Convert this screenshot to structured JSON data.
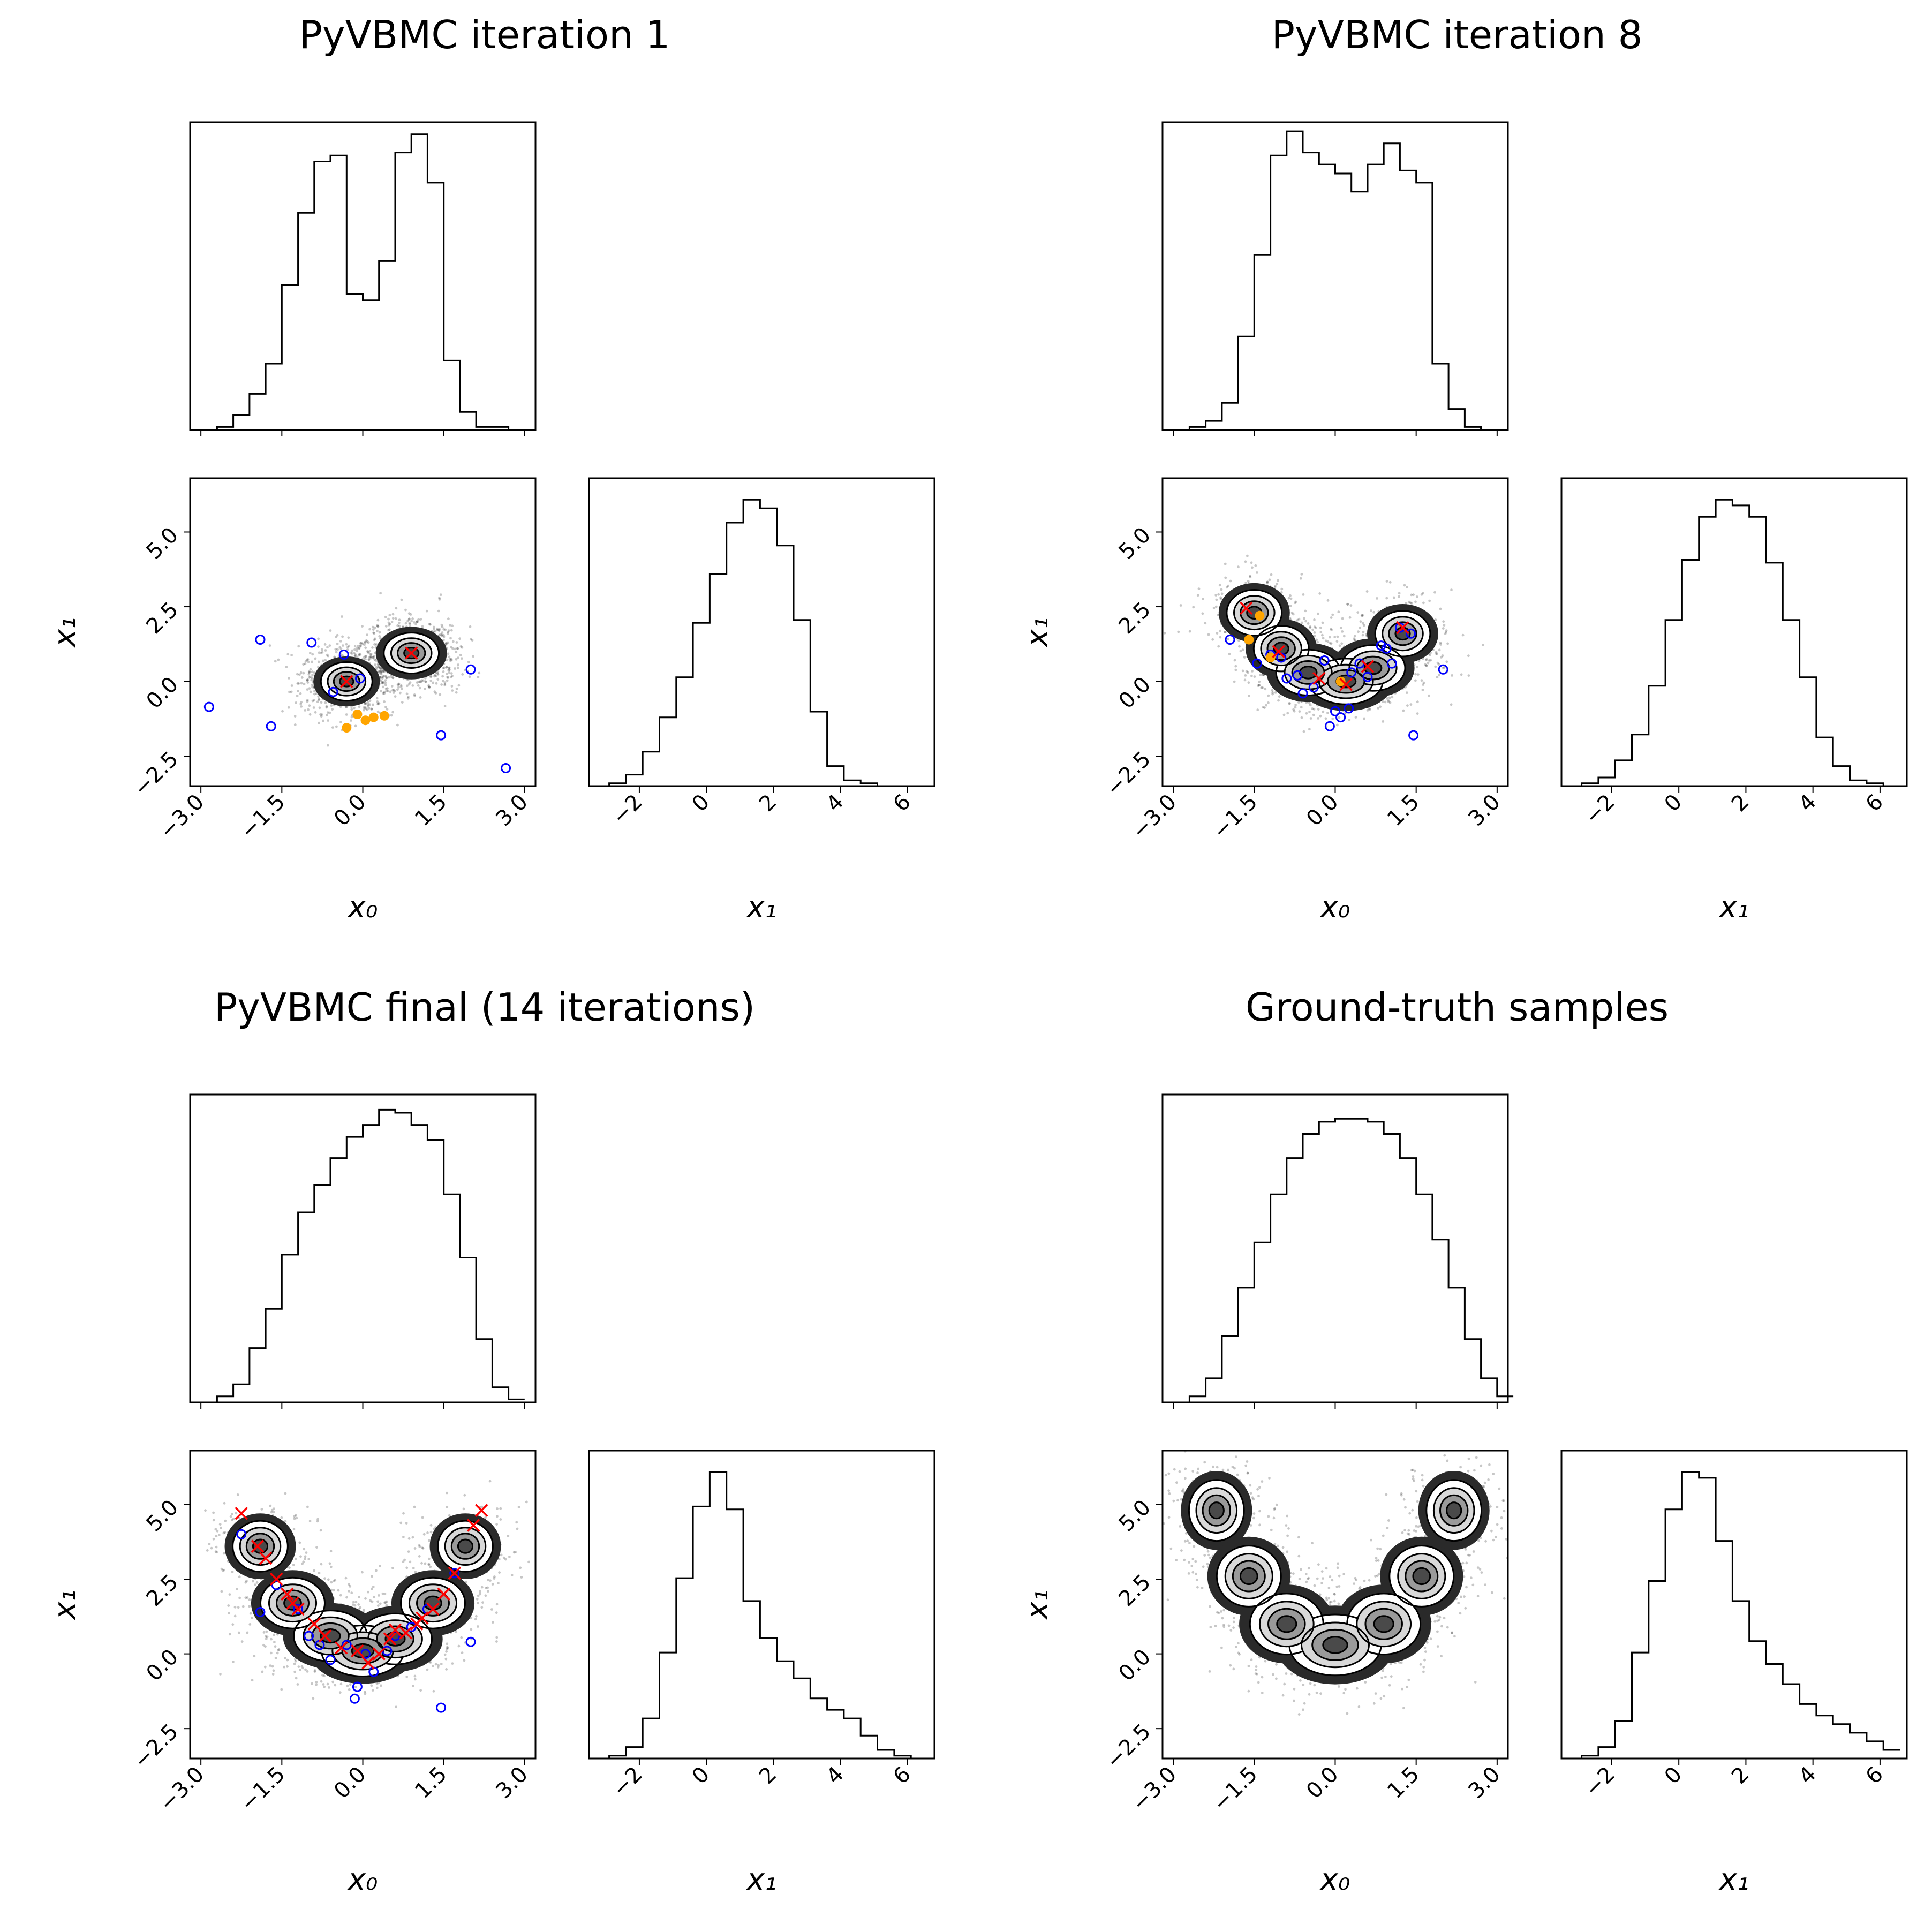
{
  "panels": [
    {
      "id": "iter1",
      "title": "PyVBMC iteration 1",
      "x_tick_labels": [
        "−3.0",
        "−1.5",
        "0.0",
        "1.5",
        "3.0"
      ],
      "y_tick_labels": [
        "−2.5",
        "0.0",
        "2.5",
        "5.0"
      ],
      "x1_marginal_tick_labels": [
        "−2",
        "0",
        "2",
        "4",
        "6"
      ],
      "x0_label": "x₀",
      "x1_label": "x₁"
    },
    {
      "id": "iter8",
      "title": "PyVBMC iteration 8",
      "x_tick_labels": [
        "−3.0",
        "−1.5",
        "0.0",
        "1.5",
        "3.0"
      ],
      "y_tick_labels": [
        "−2.5",
        "0.0",
        "2.5",
        "5.0"
      ],
      "x1_marginal_tick_labels": [
        "−2",
        "0",
        "2",
        "4",
        "6"
      ],
      "x0_label": "x₀",
      "x1_label": "x₁"
    },
    {
      "id": "final",
      "title": "PyVBMC final (14 iterations)",
      "x_tick_labels": [
        "−3.0",
        "−1.5",
        "0.0",
        "1.5",
        "3.0"
      ],
      "y_tick_labels": [
        "−2.5",
        "0.0",
        "2.5",
        "5.0"
      ],
      "x1_marginal_tick_labels": [
        "−2",
        "0",
        "2",
        "4",
        "6"
      ],
      "x0_label": "x₀",
      "x1_label": "x₁"
    },
    {
      "id": "truth",
      "title": "Ground-truth samples",
      "x_tick_labels": [
        "−3.0",
        "−1.5",
        "0.0",
        "1.5",
        "3.0"
      ],
      "y_tick_labels": [
        "−2.5",
        "0.0",
        "2.5",
        "5.0"
      ],
      "x1_marginal_tick_labels": [
        "−2",
        "0",
        "2",
        "4",
        "6"
      ],
      "x0_label": "x₀",
      "x1_label": "x₁"
    }
  ],
  "chart_data": [
    {
      "type": "corner",
      "title": "PyVBMC iteration 1",
      "x0_range": [
        -3.2,
        3.2
      ],
      "x1_range": [
        -3.5,
        6.8
      ],
      "x0_hist": {
        "edges_start": -3.0,
        "bin_width": 0.3,
        "counts": [
          0,
          0.01,
          0.05,
          0.12,
          0.22,
          0.48,
          0.72,
          0.89,
          0.91,
          0.45,
          0.43,
          0.56,
          0.92,
          0.98,
          0.82,
          0.23,
          0.06,
          0.01,
          0.01,
          0
        ]
      },
      "x1_hist": {
        "edges_start": -3.4,
        "bin_width": 0.5,
        "counts": [
          0,
          0.01,
          0.04,
          0.12,
          0.24,
          0.38,
          0.57,
          0.74,
          0.92,
          1.0,
          0.97,
          0.84,
          0.58,
          0.26,
          0.07,
          0.02,
          0.01,
          0,
          0,
          0
        ]
      },
      "components": [
        {
          "mean": [
            -0.3,
            0.0
          ],
          "sd": [
            0.28,
            0.38
          ]
        },
        {
          "mean": [
            0.9,
            0.95
          ],
          "sd": [
            0.3,
            0.4
          ]
        }
      ],
      "component_markers": [
        [
          -0.3,
          0.0
        ],
        [
          0.9,
          0.95
        ]
      ],
      "training_points": [
        [
          -2.85,
          -0.85
        ],
        [
          -1.9,
          1.4
        ],
        [
          -1.7,
          -1.5
        ],
        [
          -0.95,
          1.3
        ],
        [
          -0.55,
          -0.35
        ],
        [
          -0.35,
          0.9
        ],
        [
          -0.05,
          0.1
        ],
        [
          2.0,
          0.4
        ],
        [
          1.45,
          -1.8
        ],
        [
          2.65,
          -2.9
        ]
      ],
      "new_points": [
        [
          -0.1,
          -1.1
        ],
        [
          0.05,
          -1.3
        ],
        [
          0.2,
          -1.2
        ],
        [
          0.4,
          -1.15
        ],
        [
          -0.3,
          -1.55
        ]
      ]
    },
    {
      "type": "corner",
      "title": "PyVBMC iteration 8",
      "x0_range": [
        -3.2,
        3.2
      ],
      "x1_range": [
        -3.5,
        6.8
      ],
      "x0_hist": {
        "edges_start": -3.0,
        "bin_width": 0.3,
        "counts": [
          0,
          0.01,
          0.03,
          0.09,
          0.31,
          0.58,
          0.91,
          0.99,
          0.92,
          0.88,
          0.85,
          0.79,
          0.88,
          0.95,
          0.86,
          0.82,
          0.22,
          0.07,
          0.01,
          0
        ]
      },
      "x1_hist": {
        "edges_start": -3.4,
        "bin_width": 0.5,
        "counts": [
          0,
          0.01,
          0.03,
          0.09,
          0.18,
          0.35,
          0.58,
          0.79,
          0.94,
          1.0,
          0.98,
          0.94,
          0.78,
          0.58,
          0.38,
          0.17,
          0.07,
          0.02,
          0.01,
          0
        ]
      },
      "components": [
        {
          "mean": [
            -1.5,
            2.3
          ],
          "sd": [
            0.3,
            0.45
          ]
        },
        {
          "mean": [
            -1.0,
            1.1
          ],
          "sd": [
            0.3,
            0.45
          ]
        },
        {
          "mean": [
            -0.5,
            0.3
          ],
          "sd": [
            0.35,
            0.45
          ]
        },
        {
          "mean": [
            0.2,
            0.0
          ],
          "sd": [
            0.4,
            0.45
          ]
        },
        {
          "mean": [
            0.7,
            0.45
          ],
          "sd": [
            0.35,
            0.45
          ]
        },
        {
          "mean": [
            1.25,
            1.6
          ],
          "sd": [
            0.3,
            0.45
          ]
        }
      ],
      "component_markers": [
        [
          -1.65,
          2.45
        ],
        [
          -1.05,
          1.0
        ],
        [
          -0.3,
          0.1
        ],
        [
          0.2,
          -0.1
        ],
        [
          0.6,
          0.5
        ],
        [
          1.25,
          1.8
        ]
      ],
      "training_points": [
        [
          -1.95,
          1.4
        ],
        [
          -1.45,
          0.6
        ],
        [
          -1.2,
          0.9
        ],
        [
          -1.0,
          0.8
        ],
        [
          -0.9,
          0.1
        ],
        [
          -0.7,
          0.2
        ],
        [
          -0.6,
          -0.4
        ],
        [
          -0.4,
          -0.2
        ],
        [
          -0.2,
          0.7
        ],
        [
          0.0,
          -1.0
        ],
        [
          0.1,
          -1.2
        ],
        [
          0.25,
          -0.9
        ],
        [
          0.45,
          0.6
        ],
        [
          0.6,
          0.15
        ],
        [
          0.85,
          1.2
        ],
        [
          0.95,
          1.1
        ],
        [
          1.05,
          0.6
        ],
        [
          1.2,
          1.8
        ],
        [
          1.4,
          1.6
        ],
        [
          1.45,
          -1.8
        ],
        [
          2.0,
          0.4
        ],
        [
          -0.1,
          -1.5
        ],
        [
          0.3,
          0.3
        ]
      ],
      "new_points": [
        [
          -1.4,
          2.2
        ],
        [
          -1.6,
          1.4
        ],
        [
          -1.2,
          0.8
        ],
        [
          0.1,
          0.0
        ]
      ]
    },
    {
      "type": "corner",
      "title": "PyVBMC final (14 iterations)",
      "x0_range": [
        -3.2,
        3.2
      ],
      "x1_range": [
        -3.5,
        6.8
      ],
      "x0_hist": {
        "edges_start": -3.0,
        "bin_width": 0.3,
        "counts": [
          0,
          0.02,
          0.06,
          0.18,
          0.31,
          0.49,
          0.63,
          0.72,
          0.81,
          0.88,
          0.92,
          0.97,
          0.96,
          0.92,
          0.87,
          0.69,
          0.48,
          0.21,
          0.05,
          0.01
        ]
      },
      "x1_hist": {
        "edges_start": -3.4,
        "bin_width": 0.5,
        "counts": [
          0,
          0.01,
          0.04,
          0.14,
          0.37,
          0.63,
          0.88,
          1.0,
          0.87,
          0.55,
          0.42,
          0.34,
          0.28,
          0.21,
          0.17,
          0.14,
          0.08,
          0.03,
          0.01,
          0
        ]
      },
      "components": [
        {
          "mean": [
            -1.9,
            3.6
          ],
          "sd": [
            0.3,
            0.5
          ]
        },
        {
          "mean": [
            -1.3,
            1.7
          ],
          "sd": [
            0.35,
            0.5
          ]
        },
        {
          "mean": [
            -0.6,
            0.6
          ],
          "sd": [
            0.4,
            0.5
          ]
        },
        {
          "mean": [
            0.0,
            0.1
          ],
          "sd": [
            0.45,
            0.5
          ]
        },
        {
          "mean": [
            0.6,
            0.5
          ],
          "sd": [
            0.4,
            0.5
          ]
        },
        {
          "mean": [
            1.3,
            1.7
          ],
          "sd": [
            0.35,
            0.5
          ]
        },
        {
          "mean": [
            1.9,
            3.6
          ],
          "sd": [
            0.3,
            0.5
          ]
        }
      ],
      "component_markers": [
        [
          -2.25,
          4.7
        ],
        [
          -1.95,
          3.6
        ],
        [
          -1.8,
          3.2
        ],
        [
          -1.6,
          2.5
        ],
        [
          -1.4,
          2.0
        ],
        [
          -1.3,
          1.7
        ],
        [
          -1.2,
          1.5
        ],
        [
          -0.9,
          1.0
        ],
        [
          -0.7,
          0.6
        ],
        [
          -0.4,
          0.2
        ],
        [
          -0.1,
          0.1
        ],
        [
          0.1,
          -0.3
        ],
        [
          0.3,
          0.0
        ],
        [
          0.5,
          0.5
        ],
        [
          0.6,
          0.8
        ],
        [
          0.8,
          0.7
        ],
        [
          1.0,
          1.0
        ],
        [
          1.1,
          1.2
        ],
        [
          1.3,
          1.5
        ],
        [
          1.5,
          2.0
        ],
        [
          1.7,
          2.7
        ],
        [
          2.05,
          4.3
        ],
        [
          2.2,
          4.8
        ]
      ],
      "training_points": [
        [
          -2.25,
          4.0
        ],
        [
          -1.9,
          1.4
        ],
        [
          -1.6,
          2.3
        ],
        [
          -1.2,
          1.5
        ],
        [
          -1.0,
          0.6
        ],
        [
          -0.8,
          0.3
        ],
        [
          -0.6,
          -0.2
        ],
        [
          -0.3,
          0.3
        ],
        [
          -0.1,
          -1.1
        ],
        [
          -0.15,
          -1.5
        ],
        [
          0.05,
          0.0
        ],
        [
          0.2,
          -0.6
        ],
        [
          0.45,
          0.1
        ],
        [
          0.6,
          0.6
        ],
        [
          0.9,
          0.9
        ],
        [
          1.2,
          1.5
        ],
        [
          1.45,
          -1.8
        ],
        [
          2.0,
          0.4
        ],
        [
          1.7,
          2.7
        ]
      ],
      "new_points": []
    },
    {
      "type": "corner",
      "title": "Ground-truth samples",
      "x0_range": [
        -3.2,
        3.2
      ],
      "x1_range": [
        -3.5,
        6.8
      ],
      "x0_hist": {
        "edges_start": -3.0,
        "bin_width": 0.3,
        "counts": [
          0,
          0.02,
          0.08,
          0.22,
          0.38,
          0.53,
          0.69,
          0.81,
          0.89,
          0.93,
          0.94,
          0.94,
          0.93,
          0.89,
          0.81,
          0.69,
          0.54,
          0.38,
          0.21,
          0.08,
          0.02
        ]
      },
      "x1_hist": {
        "edges_start": -3.4,
        "bin_width": 0.5,
        "counts": [
          0,
          0.01,
          0.04,
          0.13,
          0.37,
          0.62,
          0.87,
          1.0,
          0.98,
          0.76,
          0.55,
          0.41,
          0.33,
          0.26,
          0.19,
          0.15,
          0.12,
          0.09,
          0.06,
          0.03
        ]
      },
      "components": [
        {
          "mean": [
            -2.2,
            4.8
          ],
          "sd": [
            0.3,
            0.6
          ]
        },
        {
          "mean": [
            -1.6,
            2.6
          ],
          "sd": [
            0.35,
            0.6
          ]
        },
        {
          "mean": [
            -0.9,
            1.0
          ],
          "sd": [
            0.4,
            0.6
          ]
        },
        {
          "mean": [
            0.0,
            0.3
          ],
          "sd": [
            0.5,
            0.6
          ]
        },
        {
          "mean": [
            0.9,
            1.0
          ],
          "sd": [
            0.4,
            0.6
          ]
        },
        {
          "mean": [
            1.6,
            2.6
          ],
          "sd": [
            0.35,
            0.6
          ]
        },
        {
          "mean": [
            2.2,
            4.8
          ],
          "sd": [
            0.3,
            0.6
          ]
        }
      ],
      "component_markers": [],
      "training_points": [],
      "new_points": []
    }
  ]
}
